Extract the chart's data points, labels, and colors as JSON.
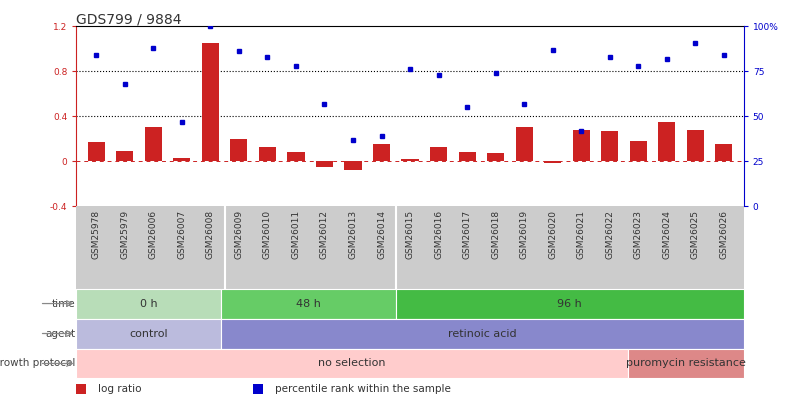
{
  "title": "GDS799 / 9884",
  "samples": [
    "GSM25978",
    "GSM25979",
    "GSM26006",
    "GSM26007",
    "GSM26008",
    "GSM26009",
    "GSM26010",
    "GSM26011",
    "GSM26012",
    "GSM26013",
    "GSM26014",
    "GSM26015",
    "GSM26016",
    "GSM26017",
    "GSM26018",
    "GSM26019",
    "GSM26020",
    "GSM26021",
    "GSM26022",
    "GSM26023",
    "GSM26024",
    "GSM26025",
    "GSM26026"
  ],
  "log_ratio": [
    0.17,
    0.09,
    0.3,
    0.03,
    1.05,
    0.2,
    0.13,
    0.08,
    -0.05,
    -0.08,
    0.15,
    0.02,
    0.13,
    0.08,
    0.07,
    0.3,
    -0.02,
    0.28,
    0.27,
    0.18,
    0.35,
    0.28,
    0.15
  ],
  "percentile": [
    84,
    68,
    88,
    47,
    100,
    86,
    83,
    78,
    57,
    37,
    39,
    76,
    73,
    55,
    74,
    57,
    87,
    42,
    83,
    78,
    82,
    91,
    84
  ],
  "bar_color": "#cc2222",
  "dot_color": "#0000cc",
  "ylim_left": [
    -0.4,
    1.2
  ],
  "ylim_right": [
    0,
    100
  ],
  "yticks_left": [
    -0.4,
    0.0,
    0.4,
    0.8,
    1.2
  ],
  "ytick_labels_left": [
    "-0.4",
    "0",
    "0.4",
    "0.8",
    "1.2"
  ],
  "yticks_right": [
    0,
    25,
    50,
    75,
    100
  ],
  "ytick_labels_right": [
    "0",
    "25",
    "50",
    "75",
    "100%"
  ],
  "hlines": [
    0.4,
    0.8
  ],
  "time_groups": [
    {
      "label": "0 h",
      "start": 0,
      "end": 5,
      "color": "#b8ddb8"
    },
    {
      "label": "48 h",
      "start": 5,
      "end": 11,
      "color": "#66cc66"
    },
    {
      "label": "96 h",
      "start": 11,
      "end": 23,
      "color": "#44bb44"
    }
  ],
  "agent_groups": [
    {
      "label": "control",
      "start": 0,
      "end": 5,
      "color": "#bbbbdd"
    },
    {
      "label": "retinoic acid",
      "start": 5,
      "end": 23,
      "color": "#8888cc"
    }
  ],
  "growth_groups": [
    {
      "label": "no selection",
      "start": 0,
      "end": 19,
      "color": "#ffcccc"
    },
    {
      "label": "puromycin resistance",
      "start": 19,
      "end": 23,
      "color": "#dd8888"
    }
  ],
  "legend_items": [
    {
      "color": "#cc2222",
      "label": "log ratio"
    },
    {
      "color": "#0000cc",
      "label": "percentile rank within the sample"
    }
  ],
  "bg_color": "#ffffff",
  "zero_line_color": "#cc2222",
  "sample_bg": "#cccccc",
  "title_fontsize": 10,
  "tick_fontsize": 6.5,
  "row_label_fontsize": 7.5,
  "annot_fontsize": 8
}
